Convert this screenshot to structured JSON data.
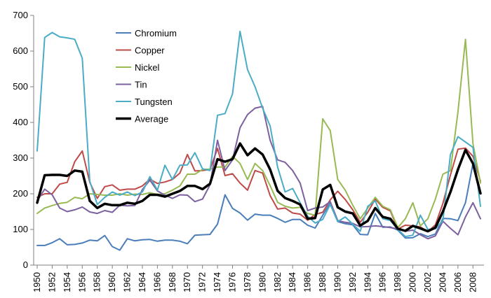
{
  "chart_data": {
    "type": "line",
    "title": "",
    "xlabel": "",
    "ylabel": "",
    "ylim": [
      0,
      700
    ],
    "yticks": [
      0,
      100,
      200,
      300,
      400,
      500,
      600,
      700
    ],
    "x": [
      1950,
      1951,
      1952,
      1953,
      1954,
      1955,
      1956,
      1957,
      1958,
      1959,
      1960,
      1961,
      1962,
      1963,
      1964,
      1965,
      1966,
      1967,
      1968,
      1969,
      1970,
      1971,
      1972,
      1973,
      1974,
      1975,
      1976,
      1977,
      1978,
      1979,
      1980,
      1981,
      1982,
      1983,
      1984,
      1985,
      1986,
      1987,
      1988,
      1989,
      1990,
      1991,
      1992,
      1993,
      1994,
      1995,
      1996,
      1997,
      1998,
      1999,
      2000,
      2001,
      2002,
      2003,
      2004,
      2005,
      2006,
      2007,
      2008,
      2009
    ],
    "xticks": [
      "1950",
      "1952",
      "1954",
      "1956",
      "1958",
      "1960",
      "1962",
      "1964",
      "1966",
      "1968",
      "1970",
      "1972",
      "1974",
      "1976",
      "1978",
      "1980",
      "1982",
      "1984",
      "1986",
      "1988",
      "1990",
      "1992",
      "1994",
      "1996",
      "1998",
      "2000",
      "2002",
      "2004",
      "2006",
      "2008"
    ],
    "legend": {
      "position": "top-left-inside"
    },
    "series": [
      {
        "name": "Chromium",
        "color": "#4A7EBB",
        "width": 2,
        "values": [
          55,
          55,
          63,
          74,
          57,
          58,
          62,
          70,
          68,
          83,
          52,
          42,
          74,
          68,
          71,
          72,
          67,
          70,
          70,
          67,
          60,
          84,
          85,
          86,
          115,
          197,
          159,
          146,
          126,
          143,
          140,
          140,
          131,
          120,
          128,
          128,
          112,
          104,
          140,
          175,
          122,
          116,
          113,
          86,
          85,
          145,
          106,
          107,
          98,
          76,
          77,
          88,
          80,
          87,
          131,
          130,
          125,
          175,
          285,
          205
        ]
      },
      {
        "name": "Copper",
        "color": "#BE4B48",
        "width": 2,
        "values": [
          190,
          200,
          200,
          227,
          232,
          290,
          320,
          232,
          187,
          220,
          225,
          210,
          213,
          213,
          222,
          241,
          229,
          233,
          240,
          258,
          310,
          264,
          265,
          268,
          327,
          251,
          256,
          230,
          210,
          265,
          258,
          195,
          157,
          160,
          146,
          143,
          126,
          142,
          148,
          183,
          207,
          184,
          155,
          120,
          148,
          185,
          162,
          152,
          101,
          112,
          110,
          107,
          94,
          113,
          173,
          253,
          325,
          328,
          305,
          235
        ]
      },
      {
        "name": "Nickel",
        "color": "#98B954",
        "width": 2,
        "values": [
          145,
          160,
          167,
          173,
          176,
          190,
          186,
          200,
          198,
          196,
          196,
          200,
          196,
          199,
          198,
          203,
          198,
          200,
          210,
          222,
          255,
          255,
          268,
          269,
          275,
          275,
          305,
          285,
          240,
          285,
          265,
          223,
          176,
          165,
          160,
          162,
          145,
          140,
          410,
          377,
          240,
          210,
          168,
          130,
          160,
          190,
          165,
          155,
          105,
          130,
          175,
          110,
          130,
          185,
          255,
          265,
          430,
          633,
          340,
          230
        ]
      },
      {
        "name": "Tin",
        "color": "#7D60A0",
        "width": 2,
        "values": [
          180,
          213,
          197,
          160,
          150,
          155,
          163,
          149,
          145,
          153,
          148,
          168,
          166,
          167,
          212,
          238,
          208,
          196,
          187,
          197,
          196,
          178,
          185,
          225,
          350,
          265,
          295,
          385,
          422,
          440,
          445,
          350,
          295,
          288,
          265,
          230,
          153,
          160,
          163,
          178,
          125,
          120,
          117,
          107,
          108,
          110,
          108,
          105,
          102,
          95,
          98,
          85,
          74,
          82,
          123,
          103,
          85,
          135,
          175,
          130
        ]
      },
      {
        "name": "Tungsten",
        "color": "#4BACC6",
        "width": 2,
        "values": [
          320,
          638,
          652,
          640,
          637,
          633,
          580,
          235,
          170,
          190,
          205,
          196,
          205,
          195,
          205,
          248,
          210,
          280,
          240,
          280,
          281,
          315,
          270,
          265,
          420,
          425,
          480,
          655,
          548,
          500,
          440,
          390,
          275,
          205,
          215,
          175,
          137,
          118,
          128,
          170,
          122,
          135,
          115,
          95,
          165,
          180,
          130,
          125,
          100,
          80,
          84,
          140,
          100,
          102,
          125,
          310,
          360,
          345,
          330,
          165
        ]
      },
      {
        "name": "Average",
        "color": "#000000",
        "width": 3.5,
        "values": [
          175,
          252,
          253,
          253,
          250,
          265,
          262,
          180,
          160,
          172,
          168,
          168,
          175,
          172,
          180,
          197,
          197,
          192,
          200,
          208,
          222,
          222,
          213,
          228,
          297,
          290,
          297,
          341,
          308,
          327,
          310,
          268,
          208,
          188,
          180,
          170,
          130,
          132,
          212,
          225,
          162,
          150,
          145,
          111,
          124,
          160,
          135,
          130,
          102,
          96,
          110,
          103,
          95,
          105,
          150,
          205,
          268,
          323,
          285,
          201
        ]
      }
    ]
  }
}
